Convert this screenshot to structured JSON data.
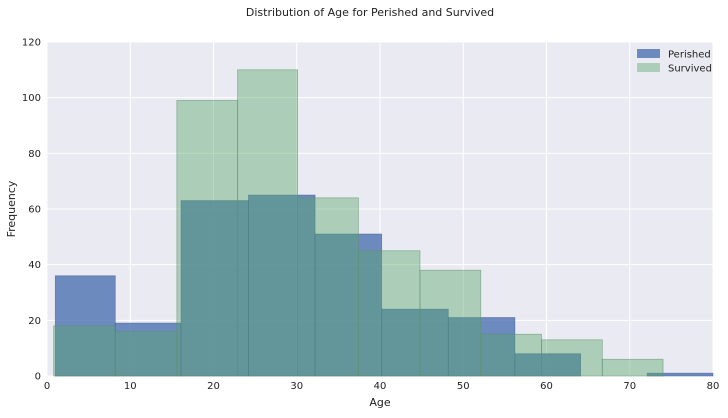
{
  "chart_data": {
    "type": "bar",
    "title": "Distribution of Age for Perished and Survived",
    "xlabel": "Age",
    "ylabel": "Frequency",
    "xlim": [
      0,
      80
    ],
    "ylim": [
      0,
      120
    ],
    "xticks": [
      0,
      10,
      20,
      30,
      40,
      50,
      60,
      70,
      80
    ],
    "yticks": [
      0,
      20,
      40,
      60,
      80,
      100,
      120
    ],
    "grid": true,
    "legend_position": "top-right",
    "series": [
      {
        "name": "Perished",
        "color": "#4c72b0",
        "bins": [
          {
            "x0": 1,
            "x1": 8.2,
            "count": 36
          },
          {
            "x0": 8.2,
            "x1": 16.1,
            "count": 19
          },
          {
            "x0": 16.1,
            "x1": 24.2,
            "count": 63
          },
          {
            "x0": 24.2,
            "x1": 32.2,
            "count": 65
          },
          {
            "x0": 32.2,
            "x1": 40.2,
            "count": 51
          },
          {
            "x0": 40.2,
            "x1": 48.2,
            "count": 24
          },
          {
            "x0": 48.2,
            "x1": 56.2,
            "count": 21
          },
          {
            "x0": 56.2,
            "x1": 64.1,
            "count": 8
          },
          {
            "x0": 64.1,
            "x1": 72.1,
            "count": 0
          },
          {
            "x0": 72.1,
            "x1": 80,
            "count": 1
          }
        ]
      },
      {
        "name": "Survived",
        "color": "#55a868",
        "bins": [
          {
            "x0": 0.8,
            "x1": 8.2,
            "count": 18
          },
          {
            "x0": 8.2,
            "x1": 15.6,
            "count": 16
          },
          {
            "x0": 15.6,
            "x1": 22.9,
            "count": 99
          },
          {
            "x0": 22.9,
            "x1": 30.1,
            "count": 110
          },
          {
            "x0": 30.1,
            "x1": 37.4,
            "count": 64
          },
          {
            "x0": 37.4,
            "x1": 44.8,
            "count": 45
          },
          {
            "x0": 44.8,
            "x1": 52.1,
            "count": 38
          },
          {
            "x0": 52.1,
            "x1": 59.4,
            "count": 15
          },
          {
            "x0": 59.4,
            "x1": 66.7,
            "count": 13
          },
          {
            "x0": 66.7,
            "x1": 74,
            "count": 6
          }
        ]
      }
    ]
  }
}
